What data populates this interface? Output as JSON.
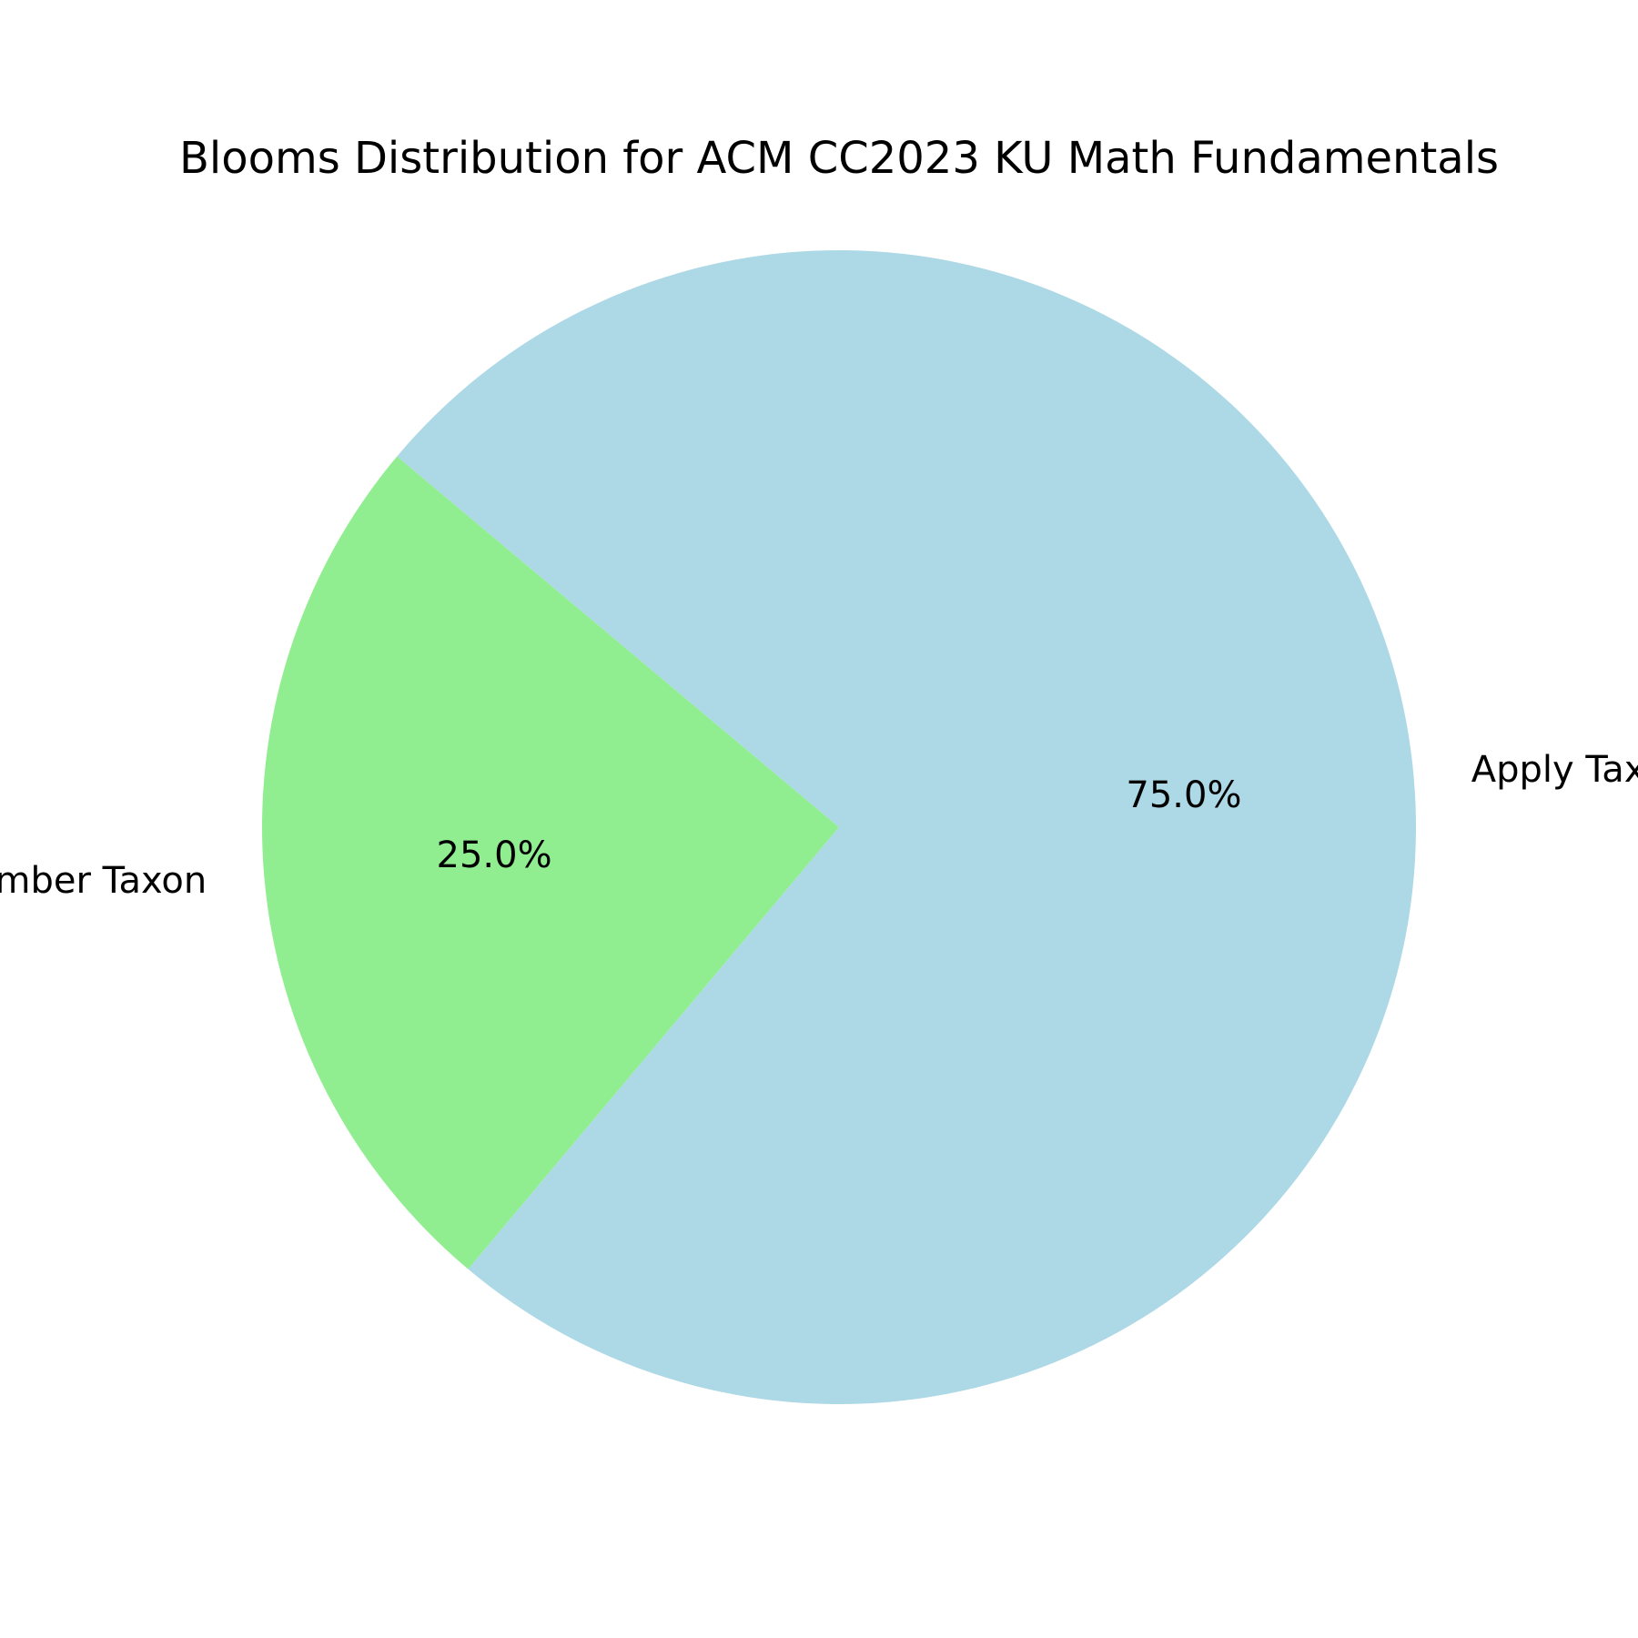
{
  "chart_data": {
    "type": "pie",
    "title": "Blooms Distribution for ACM CC2023 KU Math Fundamentals",
    "slices": [
      {
        "label": "Remember Taxon",
        "value": 25.0,
        "pct_label": "25.0%",
        "color": "#90EE90"
      },
      {
        "label": "Apply Taxon",
        "value": 75.0,
        "pct_label": "75.0%",
        "color": "#ADD8E6"
      }
    ],
    "start_angle_deg": 140,
    "direction": "counterclockwise"
  }
}
